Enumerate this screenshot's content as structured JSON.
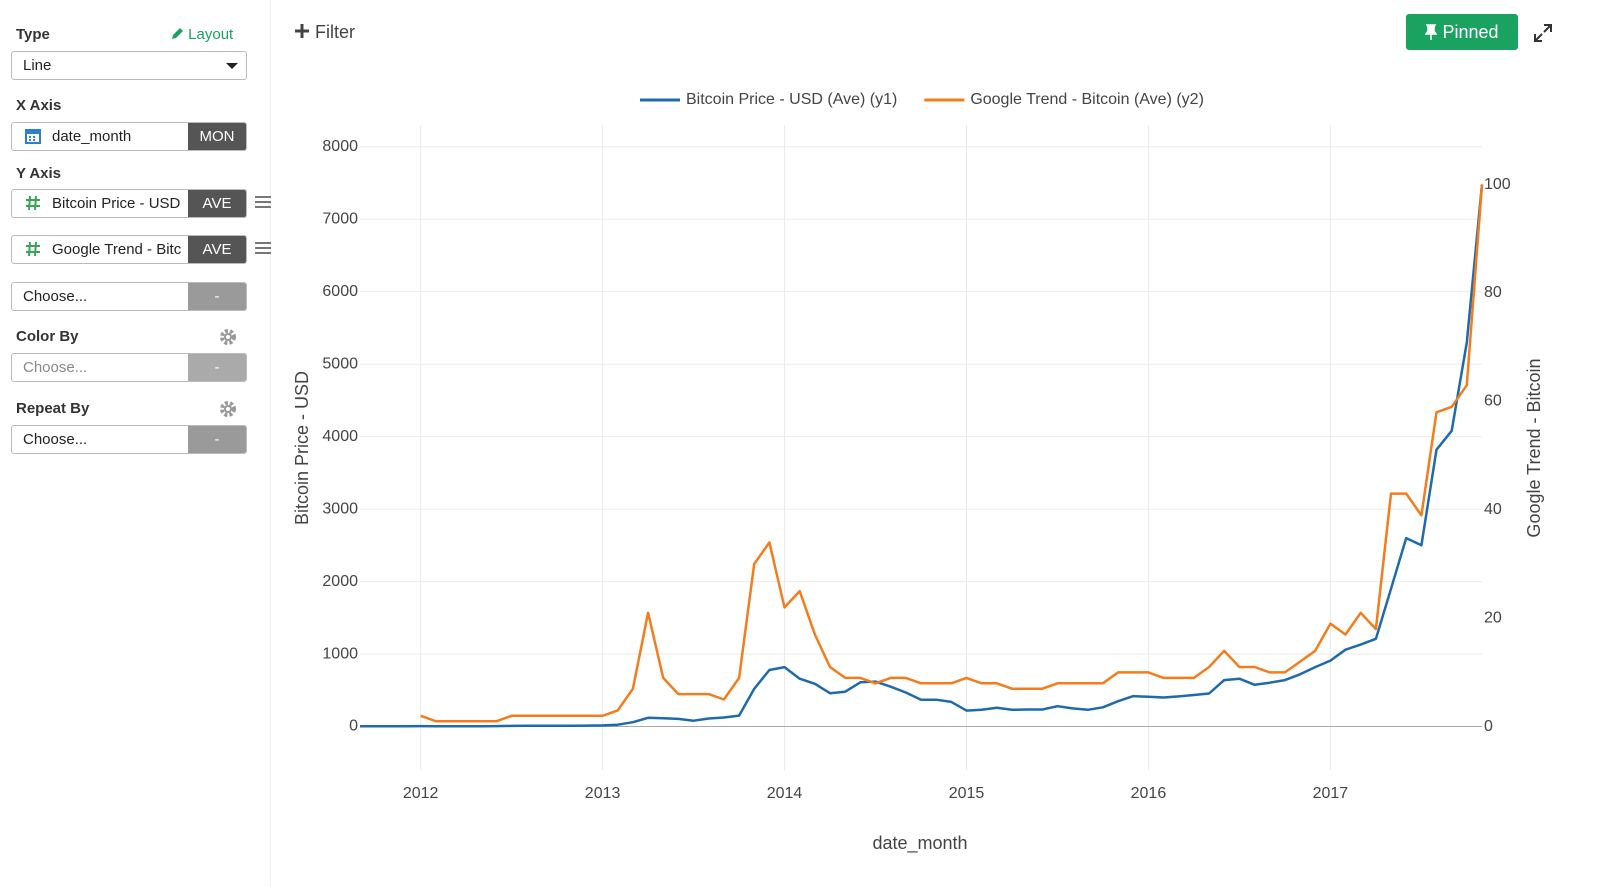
{
  "sidebar": {
    "type_label": "Type",
    "layout_link": "Layout",
    "type_value": "Line",
    "x_axis_label": "X Axis",
    "x_field": "date_month",
    "x_agg": "MON",
    "y_axis_label": "Y Axis",
    "y_fields": [
      {
        "name": "Bitcoin Price - USD",
        "agg": "AVE"
      },
      {
        "name": "Google Trend - Bitc",
        "agg": "AVE"
      }
    ],
    "y_empty": {
      "placeholder": "Choose...",
      "button": "-"
    },
    "color_by": {
      "label": "Color By",
      "placeholder": "Choose...",
      "button": "-"
    },
    "repeat_by": {
      "label": "Repeat By",
      "placeholder": "Choose...",
      "button": "-"
    }
  },
  "toolbar": {
    "filter": "Filter",
    "pinned": "Pinned"
  },
  "chart_data": {
    "type": "line",
    "x_label": "date_month",
    "y_label": "Bitcoin Price - USD",
    "y2_label": "Google Trend - Bitcoin",
    "x": [
      "2011-09",
      "2011-10",
      "2011-11",
      "2011-12",
      "2012-01",
      "2012-02",
      "2012-03",
      "2012-04",
      "2012-05",
      "2012-06",
      "2012-07",
      "2012-08",
      "2012-09",
      "2012-10",
      "2012-11",
      "2012-12",
      "2013-01",
      "2013-02",
      "2013-03",
      "2013-04",
      "2013-05",
      "2013-06",
      "2013-07",
      "2013-08",
      "2013-09",
      "2013-10",
      "2013-11",
      "2013-12",
      "2014-01",
      "2014-02",
      "2014-03",
      "2014-04",
      "2014-05",
      "2014-06",
      "2014-07",
      "2014-08",
      "2014-09",
      "2014-10",
      "2014-11",
      "2014-12",
      "2015-01",
      "2015-02",
      "2015-03",
      "2015-04",
      "2015-05",
      "2015-06",
      "2015-07",
      "2015-08",
      "2015-09",
      "2015-10",
      "2015-11",
      "2015-12",
      "2016-01",
      "2016-02",
      "2016-03",
      "2016-04",
      "2016-05",
      "2016-06",
      "2016-07",
      "2016-08",
      "2016-09",
      "2016-10",
      "2016-11",
      "2016-12",
      "2017-01",
      "2017-02",
      "2017-03",
      "2017-04",
      "2017-05",
      "2017-06",
      "2017-07",
      "2017-08",
      "2017-09",
      "2017-10",
      "2017-11"
    ],
    "series": [
      {
        "name": "Bitcoin Price - USD (Ave) (y1)",
        "color": "#1f6aad",
        "axis": "y",
        "values": [
          5,
          3,
          3,
          3,
          6,
          5,
          5,
          5,
          5,
          6,
          8,
          10,
          11,
          11,
          11,
          13,
          15,
          25,
          60,
          120,
          115,
          105,
          80,
          110,
          125,
          150,
          520,
          780,
          820,
          660,
          590,
          460,
          480,
          610,
          620,
          550,
          470,
          370,
          370,
          340,
          220,
          230,
          260,
          230,
          235,
          235,
          280,
          250,
          230,
          265,
          350,
          420,
          410,
          400,
          415,
          435,
          455,
          640,
          660,
          575,
          605,
          640,
          720,
          820,
          910,
          1060,
          1130,
          1210,
          1900,
          2600,
          2500,
          3820,
          4080,
          5300,
          7480
        ]
      },
      {
        "name": "Google Trend - Bitcoin (Ave) (y2)",
        "color": "#f57c1c",
        "axis": "y2",
        "values": [
          null,
          null,
          null,
          null,
          2,
          1,
          1,
          1,
          1,
          1,
          2,
          2,
          2,
          2,
          2,
          2,
          2,
          3,
          7,
          21,
          9,
          6,
          6,
          6,
          5,
          9,
          30,
          34,
          22,
          25,
          17,
          11,
          9,
          9,
          8,
          9,
          9,
          8,
          8,
          8,
          9,
          8,
          8,
          7,
          7,
          7,
          8,
          8,
          8,
          8,
          10,
          10,
          10,
          9,
          9,
          9,
          11,
          14,
          11,
          11,
          10,
          10,
          12,
          14,
          19,
          17,
          21,
          18,
          43,
          43,
          39,
          58,
          59,
          63,
          100
        ]
      }
    ],
    "xlim": [
      "2011-09",
      "2017-11"
    ],
    "xticks": [
      "2012",
      "2013",
      "2014",
      "2015",
      "2016",
      "2017"
    ],
    "ylim": [
      -600,
      8300
    ],
    "yticks": [
      0,
      1000,
      2000,
      3000,
      4000,
      5000,
      6000,
      7000,
      8000
    ],
    "y2lim": [
      -8,
      111
    ],
    "y2ticks": [
      0,
      20,
      40,
      60,
      80,
      100
    ],
    "grid": true,
    "legend": "top"
  }
}
